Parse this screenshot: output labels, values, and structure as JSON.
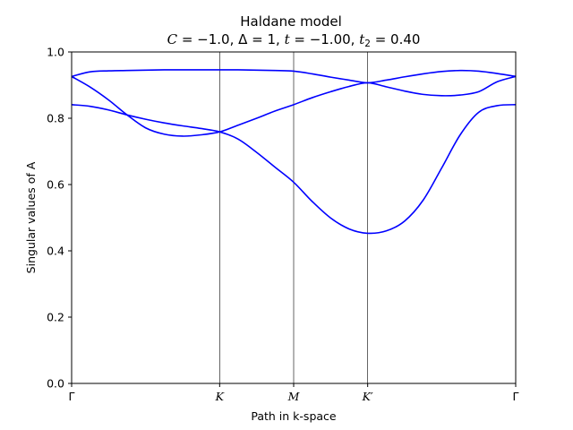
{
  "chart_data": {
    "type": "line",
    "title": "Haldane model",
    "subtitle": "C = −1.0, Δ = 1, t = −1.00, t₂ = 0.40",
    "xlabel": "Path in k-space",
    "ylabel": "Singular values of A",
    "ylim": [
      0,
      1.0
    ],
    "xlim": [
      0,
      6
    ],
    "x_ticks": [
      {
        "x": 0,
        "label": "Γ"
      },
      {
        "x": 2,
        "label": "K"
      },
      {
        "x": 3,
        "label": "M"
      },
      {
        "x": 4,
        "label": "K′"
      },
      {
        "x": 6,
        "label": "Γ"
      }
    ],
    "y_ticks": [
      0.0,
      0.2,
      0.4,
      0.6,
      0.8,
      1.0
    ],
    "y_tick_labels": [
      "0.0",
      "0.2",
      "0.4",
      "0.6",
      "0.8",
      "1.0"
    ],
    "vlines": [
      2,
      3,
      4
    ],
    "color": "#0000ff",
    "series": [
      {
        "x": [
          0,
          0.25,
          0.5,
          0.75,
          1.0,
          1.25,
          1.5,
          1.75,
          2.0,
          2.25,
          2.5,
          2.75,
          3.0,
          3.25,
          3.5,
          3.75,
          4.0,
          4.25,
          4.5,
          4.75,
          5.0,
          5.25,
          5.5,
          5.75,
          6.0
        ],
        "values": [
          0.926,
          0.94,
          0.943,
          0.944,
          0.945,
          0.946,
          0.946,
          0.946,
          0.946,
          0.946,
          0.945,
          0.944,
          0.942,
          0.934,
          0.924,
          0.915,
          0.907,
          0.915,
          0.925,
          0.934,
          0.941,
          0.944,
          0.942,
          0.935,
          0.926
        ]
      },
      {
        "x": [
          0,
          0.25,
          0.5,
          0.75,
          1.0,
          1.25,
          1.5,
          1.75,
          2.0,
          2.25,
          2.5,
          2.75,
          3.0,
          3.25,
          3.5,
          3.75,
          4.0,
          4.25,
          4.5,
          4.75,
          5.0,
          5.25,
          5.5,
          5.75,
          6.0
        ],
        "values": [
          0.926,
          0.894,
          0.855,
          0.81,
          0.771,
          0.752,
          0.746,
          0.75,
          0.759,
          0.779,
          0.8,
          0.822,
          0.841,
          0.862,
          0.88,
          0.896,
          0.907,
          0.895,
          0.882,
          0.872,
          0.868,
          0.87,
          0.88,
          0.91,
          0.926
        ]
      },
      {
        "x": [
          0,
          0.25,
          0.5,
          0.75,
          1.0,
          1.25,
          1.5,
          1.75,
          2.0,
          2.25,
          2.5,
          2.75,
          3.0,
          3.25,
          3.5,
          3.75,
          4.0,
          4.25,
          4.5,
          4.75,
          5.0,
          5.25,
          5.5,
          5.75,
          6.0
        ],
        "values": [
          0.841,
          0.836,
          0.825,
          0.81,
          0.797,
          0.786,
          0.777,
          0.769,
          0.759,
          0.737,
          0.697,
          0.652,
          0.607,
          0.549,
          0.499,
          0.466,
          0.453,
          0.46,
          0.49,
          0.553,
          0.65,
          0.75,
          0.818,
          0.838,
          0.841
        ]
      }
    ]
  }
}
